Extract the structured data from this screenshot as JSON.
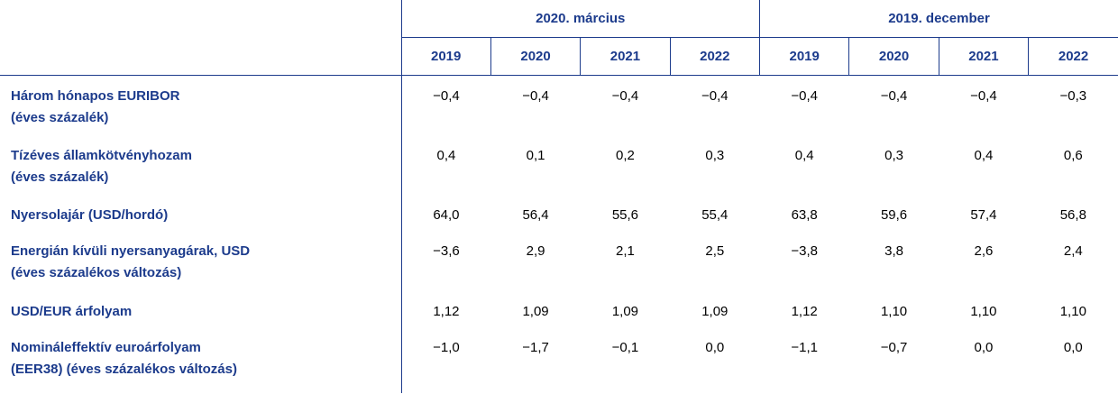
{
  "header": {
    "groups": [
      "2020. március",
      "2019. december"
    ],
    "years": [
      "2019",
      "2020",
      "2021",
      "2022",
      "2019",
      "2020",
      "2021",
      "2022"
    ]
  },
  "rows": [
    {
      "label": [
        "Három hónapos EURIBOR",
        "(éves százalék)"
      ],
      "values": [
        "−0,4",
        "−0,4",
        "−0,4",
        "−0,4",
        "−0,4",
        "−0,4",
        "−0,4",
        "−0,3"
      ]
    },
    {
      "label": [
        "Tízéves államkötvényhozam",
        "(éves százalék)"
      ],
      "values": [
        "0,4",
        "0,1",
        "0,2",
        "0,3",
        "0,4",
        "0,3",
        "0,4",
        "0,6"
      ]
    },
    {
      "label": [
        "Nyersolajár (USD/hordó)"
      ],
      "values": [
        "64,0",
        "56,4",
        "55,6",
        "55,4",
        "63,8",
        "59,6",
        "57,4",
        "56,8"
      ]
    },
    {
      "label": [
        "Energián kívüli nyersanyagárak, USD",
        "(éves százalékos változás)"
      ],
      "values": [
        "−3,6",
        "2,9",
        "2,1",
        "2,5",
        "−3,8",
        "3,8",
        "2,6",
        "2,4"
      ]
    },
    {
      "label": [
        "USD/EUR árfolyam"
      ],
      "values": [
        "1,12",
        "1,09",
        "1,09",
        "1,09",
        "1,12",
        "1,10",
        "1,10",
        "1,10"
      ]
    },
    {
      "label": [
        "Nomináleffektív euroárfolyam",
        "(EER38) (éves százalékos változás)"
      ],
      "values": [
        "−1,0",
        "−1,7",
        "−0,1",
        "0,0",
        "−1,1",
        "−0,7",
        "0,0",
        "0,0"
      ]
    }
  ]
}
